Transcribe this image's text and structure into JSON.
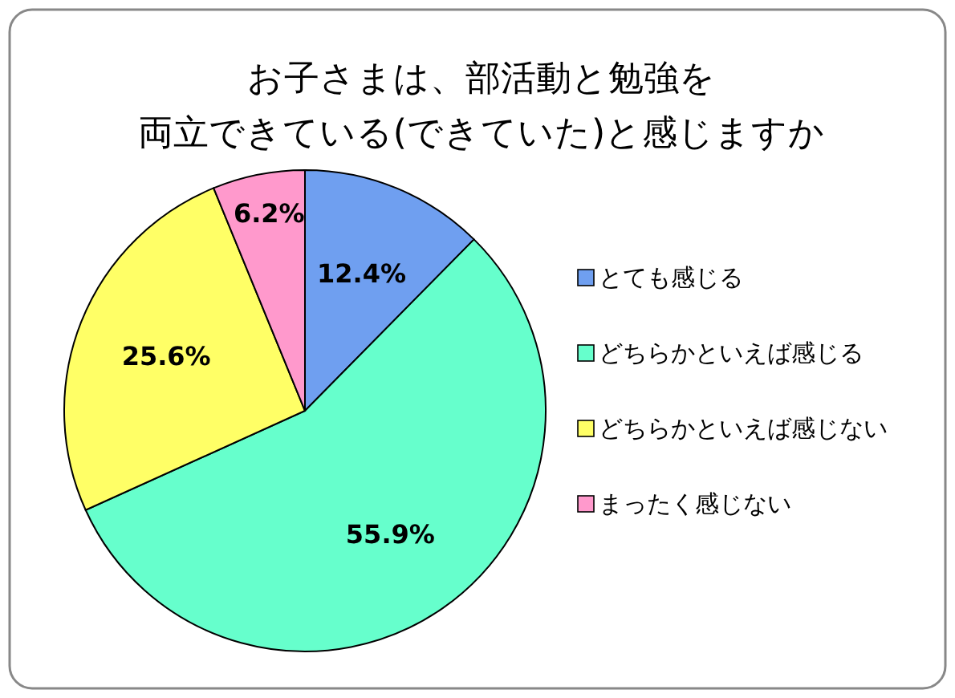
{
  "chart_data": {
    "type": "pie",
    "title": "お子さまは、部活動と勉強を両立できている(できていた)と感じますか",
    "categories": [
      "とても感じる",
      "どちらかといえば感じる",
      "どちらかといえば感じない",
      "まったく感じない"
    ],
    "values": [
      12.4,
      55.9,
      25.6,
      6.2
    ],
    "colors": [
      "#6f9ff0",
      "#66ffcc",
      "#ffff66",
      "#ff99cc"
    ],
    "value_labels": [
      "12.4%",
      "55.9%",
      "25.6%",
      "6.2%"
    ],
    "legend": "right"
  }
}
